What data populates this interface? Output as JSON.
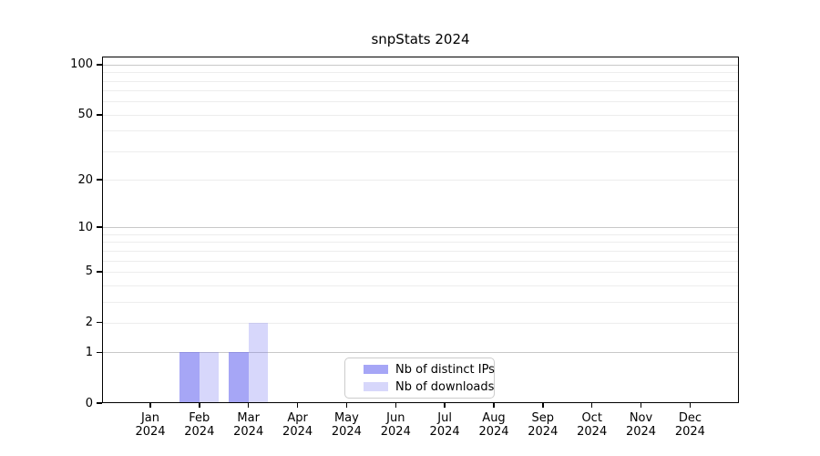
{
  "chart_data": {
    "type": "bar",
    "title": "snpStats 2024",
    "categories": [
      "Jan",
      "Feb",
      "Mar",
      "Apr",
      "May",
      "Jun",
      "Jul",
      "Aug",
      "Sep",
      "Oct",
      "Nov",
      "Dec"
    ],
    "year_label": "2024",
    "series": [
      {
        "name": "Nb of distinct IPs",
        "color": "#7070f0",
        "alpha": 0.62,
        "values": [
          0,
          1,
          1,
          0,
          0,
          0,
          0,
          0,
          0,
          0,
          0,
          0
        ]
      },
      {
        "name": "Nb of downloads",
        "color": "#7070f0",
        "alpha": 0.28,
        "values": [
          0,
          1,
          2,
          0,
          0,
          0,
          0,
          0,
          0,
          0,
          0,
          0
        ]
      }
    ],
    "yscale": "log1p",
    "ylim": [
      0,
      112
    ],
    "ytick_values": [
      0,
      1,
      2,
      5,
      10,
      20,
      50,
      100
    ],
    "ytick_labels": [
      "0",
      "1",
      "2",
      "5",
      "10",
      "20",
      "50",
      "100"
    ],
    "major_gridlines": [
      1,
      10,
      100
    ],
    "minor_gridlines": [
      2,
      3,
      4,
      5,
      6,
      7,
      8,
      9,
      20,
      30,
      40,
      50,
      60,
      70,
      80,
      90
    ],
    "grid": true,
    "legend_position": "lower center"
  },
  "colors": {
    "background": "#ffffff",
    "spine": "#000000",
    "text": "#000000",
    "grid_major": "#c8c8c8",
    "grid_minor": "#ededed",
    "legend_border": "#cccccc"
  }
}
